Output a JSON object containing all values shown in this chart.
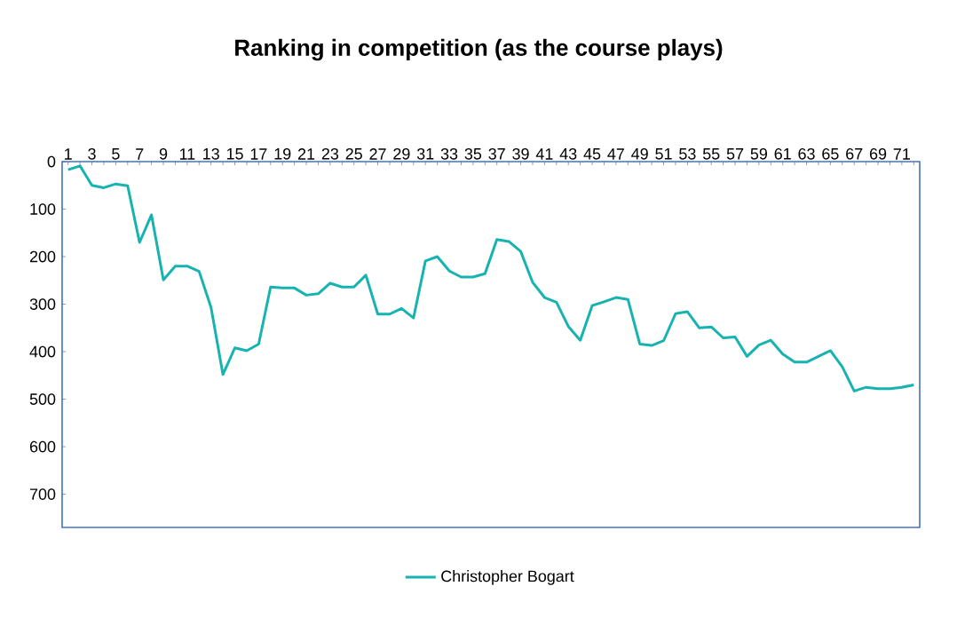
{
  "chart_data": {
    "type": "line",
    "title": "Ranking in competition (as the course plays)",
    "categories": [
      "1",
      null,
      "3",
      null,
      "5",
      null,
      "7",
      null,
      "9",
      null,
      "11",
      null,
      "13",
      null,
      "15",
      null,
      "17",
      null,
      "19",
      null,
      "21",
      null,
      "23",
      null,
      "25",
      null,
      "27",
      null,
      "29",
      null,
      "31",
      null,
      "33",
      null,
      "35",
      null,
      "37",
      null,
      "39",
      null,
      "41",
      null,
      "43",
      null,
      "45",
      null,
      "47",
      null,
      "49",
      null,
      "51",
      null,
      "53",
      null,
      "55",
      null,
      "57",
      null,
      "59",
      null,
      "61",
      null,
      "63",
      null,
      "65",
      null,
      "67",
      null,
      "69",
      null,
      "71",
      null
    ],
    "series": [
      {
        "name": "Christopher Bogart",
        "color": "#17b3b0",
        "values": [
          17,
          9,
          50,
          55,
          47,
          51,
          170,
          112,
          249,
          220,
          220,
          231,
          307,
          448,
          392,
          398,
          384,
          264,
          266,
          266,
          281,
          278,
          256,
          264,
          264,
          239,
          321,
          321,
          309,
          329,
          209,
          200,
          230,
          243,
          243,
          236,
          164,
          168,
          189,
          254,
          286,
          296,
          347,
          376,
          303,
          295,
          286,
          290,
          384,
          387,
          377,
          320,
          316,
          350,
          348,
          371,
          369,
          410,
          386,
          376,
          405,
          422,
          422,
          410,
          398,
          432,
          483,
          475,
          478,
          478,
          475,
          470
        ]
      }
    ],
    "ylim": [
      770,
      0
    ],
    "yticks": [
      0,
      100,
      200,
      300,
      400,
      500,
      600,
      700
    ],
    "legend": "bottom",
    "marker": "none"
  }
}
